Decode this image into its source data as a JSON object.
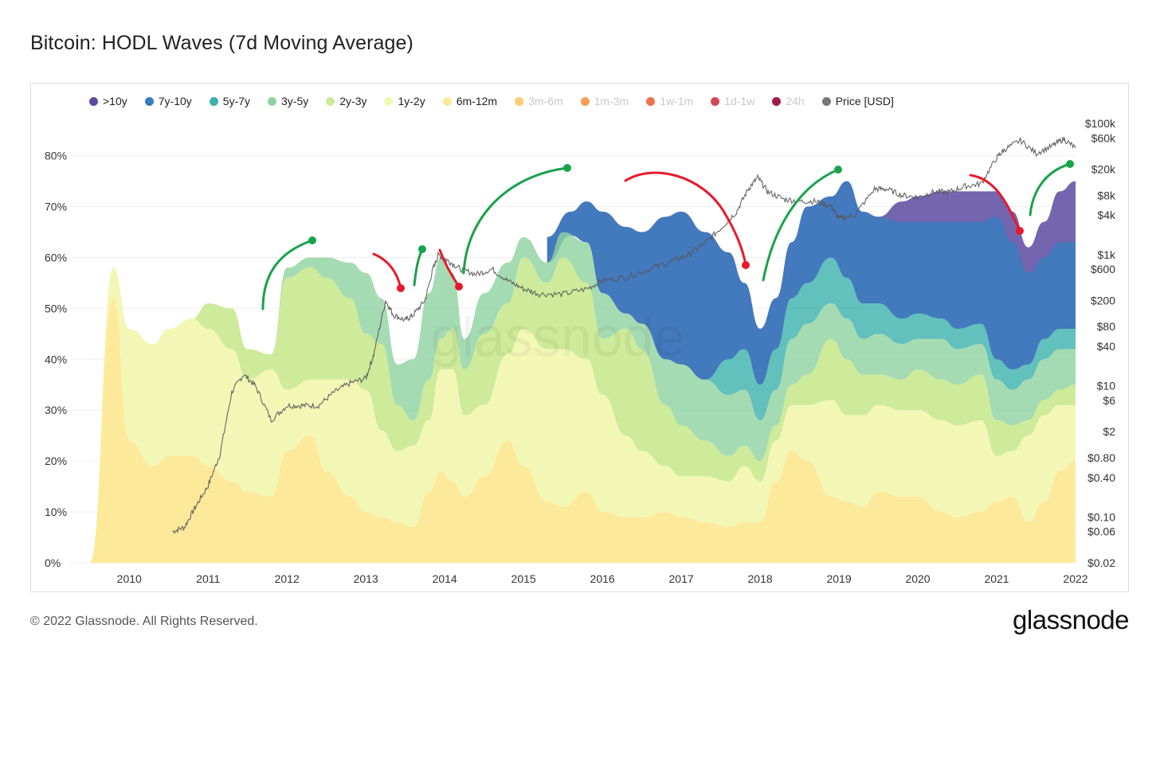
{
  "title": "Bitcoin: HODL Waves (7d Moving Average)",
  "footer": "© 2022 Glassnode. All Rights Reserved.",
  "logo_text": "glassnode",
  "watermark": "glassnode",
  "legend": [
    {
      "label": ">10y",
      "color": "#5b4aa0",
      "active": true
    },
    {
      "label": "7y-10y",
      "color": "#3b7cc0",
      "active": true
    },
    {
      "label": "5y-7y",
      "color": "#3bb0ad",
      "active": true
    },
    {
      "label": "3y-5y",
      "color": "#8fd2a0",
      "active": true
    },
    {
      "label": "2y-3y",
      "color": "#cdeb9a",
      "active": true
    },
    {
      "label": "1y-2y",
      "color": "#f3f7b6",
      "active": true
    },
    {
      "label": "6m-12m",
      "color": "#fde99a",
      "active": true
    },
    {
      "label": "3m-6m",
      "color": "#fdc96e",
      "active": false
    },
    {
      "label": "1m-3m",
      "color": "#f79a4e",
      "active": false
    },
    {
      "label": "1w-1m",
      "color": "#ee6a44",
      "active": false
    },
    {
      "label": "1d-1w",
      "color": "#d63b4e",
      "active": false
    },
    {
      "label": "24h",
      "color": "#9b0d3c",
      "active": false
    },
    {
      "label": "Price [USD]",
      "color": "#777777",
      "active": true
    }
  ],
  "chart_data": {
    "type": "area",
    "stacked": true,
    "x": [
      2009.5,
      2009.8,
      2010.0,
      2010.3,
      2010.5,
      2010.8,
      2011.0,
      2011.3,
      2011.5,
      2011.8,
      2012.0,
      2012.3,
      2012.5,
      2012.8,
      2013.0,
      2013.2,
      2013.4,
      2013.6,
      2013.8,
      2013.95,
      2014.1,
      2014.25,
      2014.5,
      2014.8,
      2015.0,
      2015.3,
      2015.5,
      2015.8,
      2016.0,
      2016.3,
      2016.5,
      2016.8,
      2017.0,
      2017.3,
      2017.6,
      2017.8,
      2018.0,
      2018.2,
      2018.4,
      2018.6,
      2018.9,
      2019.1,
      2019.3,
      2019.5,
      2019.8,
      2020.0,
      2020.3,
      2020.5,
      2020.8,
      2021.0,
      2021.2,
      2021.4,
      2021.6,
      2021.8,
      2022.0
    ],
    "series": [
      {
        "name": "6m-12m",
        "values": [
          0,
          52,
          24,
          19,
          21,
          21,
          19,
          16,
          14,
          13,
          22,
          25,
          18,
          13,
          10,
          9,
          8,
          7,
          14,
          18,
          16,
          13,
          17,
          24,
          19,
          12,
          11,
          14,
          10,
          9,
          9,
          10,
          9,
          8,
          7,
          8,
          8,
          16,
          22,
          20,
          13,
          12,
          11,
          14,
          13,
          13,
          10,
          9,
          10,
          12,
          13,
          8,
          12,
          18,
          20
        ]
      },
      {
        "name": "1y-2y",
        "values": [
          0,
          6,
          22,
          24,
          25,
          27,
          27,
          26,
          22,
          25,
          12,
          11,
          18,
          23,
          24,
          17,
          14,
          16,
          14,
          20,
          22,
          16,
          14,
          17,
          27,
          30,
          31,
          26,
          23,
          16,
          13,
          9,
          8,
          9,
          9,
          11,
          8,
          8,
          9,
          11,
          19,
          17,
          18,
          17,
          17,
          17,
          18,
          18,
          18,
          9,
          9,
          17,
          17,
          13,
          11
        ]
      },
      {
        "name": "2y-3y",
        "values": [
          0,
          0,
          0,
          0,
          0,
          0,
          5,
          8,
          6,
          3,
          22,
          22,
          20,
          16,
          11,
          17,
          9,
          5,
          8,
          6,
          8,
          9,
          14,
          10,
          14,
          13,
          18,
          15,
          11,
          21,
          20,
          12,
          10,
          7,
          5,
          4,
          4,
          3,
          4,
          6,
          12,
          11,
          8,
          6,
          6,
          8,
          8,
          8,
          9,
          7,
          5,
          3,
          3,
          3,
          4
        ]
      },
      {
        "name": "3y-5y",
        "values": [
          0,
          0,
          0,
          0,
          0,
          0,
          0,
          0,
          0,
          0,
          2,
          2,
          4,
          7,
          12,
          9,
          8,
          12,
          17,
          16,
          11,
          6,
          8,
          8,
          4,
          4,
          5,
          8,
          9,
          3,
          5,
          9,
          12,
          12,
          12,
          11,
          8,
          7,
          9,
          10,
          7,
          8,
          7,
          8,
          7,
          6,
          8,
          7,
          6,
          8,
          7,
          8,
          8,
          8,
          7
        ]
      },
      {
        "name": "5y-7y",
        "values": [
          0,
          0,
          0,
          0,
          0,
          0,
          0,
          0,
          0,
          0,
          0,
          0,
          0,
          0,
          0,
          0,
          0,
          0,
          0,
          0,
          0,
          0,
          0,
          0,
          0,
          0,
          0,
          0,
          0,
          0,
          0,
          0,
          0,
          0,
          7,
          8,
          7,
          8,
          8,
          8,
          9,
          8,
          7,
          6,
          5,
          5,
          4,
          4,
          4,
          4,
          4,
          3,
          4,
          4,
          4
        ]
      },
      {
        "name": "7y-10y",
        "values": [
          0,
          0,
          0,
          0,
          0,
          0,
          0,
          0,
          0,
          0,
          0,
          0,
          0,
          0,
          0,
          0,
          0,
          0,
          0,
          0,
          0,
          0,
          0,
          0,
          0,
          0,
          0,
          0,
          0,
          0,
          0,
          0,
          0,
          0,
          0,
          0,
          0,
          0,
          0,
          0,
          0,
          0,
          0,
          0,
          0,
          0,
          0,
          0,
          0,
          0,
          0,
          0,
          0,
          0,
          0
        ]
      },
      {
        "name": ">10y",
        "values": [
          0,
          0,
          0,
          0,
          0,
          0,
          0,
          0,
          0,
          0,
          0,
          0,
          0,
          0,
          0,
          0,
          0,
          0,
          0,
          0,
          0,
          0,
          0,
          0,
          0,
          0,
          0,
          0,
          0,
          0,
          0,
          0,
          0,
          0,
          0,
          0,
          0,
          0,
          0,
          0,
          0,
          0,
          0,
          0,
          0,
          0,
          0,
          0,
          0,
          0,
          0,
          0,
          0,
          0,
          0
        ]
      }
    ],
    "top_bands": {
      "x": [
        2015.3,
        2015.6,
        2015.8,
        2016.0,
        2016.3,
        2016.5,
        2016.8,
        2017.0,
        2017.3,
        2017.6,
        2017.8,
        2018.0,
        2018.2,
        2018.4,
        2018.6,
        2018.9,
        2019.1,
        2019.3,
        2019.5,
        2019.8,
        2020.0,
        2020.3,
        2020.5,
        2020.8,
        2021.0,
        2021.2,
        2021.4,
        2021.6,
        2021.8,
        2022.0
      ],
      "levels_7y_10y_top": [
        64,
        69,
        71,
        69,
        66,
        65,
        68,
        69,
        65,
        61,
        55,
        46,
        52,
        63,
        70,
        72,
        75,
        69,
        68,
        67,
        67,
        67,
        67,
        67,
        68,
        63,
        57,
        60,
        63,
        63
      ],
      "levels_10y_top": [
        64,
        69,
        71,
        69,
        66,
        65,
        68,
        69,
        65,
        61,
        55,
        46,
        52,
        63,
        70,
        72,
        75,
        69,
        68,
        71,
        72,
        73,
        73,
        73,
        73,
        69,
        62,
        67,
        73,
        75
      ]
    },
    "price": {
      "name": "Price [USD]",
      "x": [
        2010.55,
        2010.7,
        2010.85,
        2011.0,
        2011.15,
        2011.3,
        2011.45,
        2011.6,
        2011.8,
        2012.0,
        2012.2,
        2012.4,
        2012.6,
        2012.8,
        2013.0,
        2013.1,
        2013.25,
        2013.35,
        2013.5,
        2013.6,
        2013.75,
        2013.85,
        2013.92,
        2014.05,
        2014.2,
        2014.4,
        2014.6,
        2014.8,
        2015.0,
        2015.2,
        2015.5,
        2015.8,
        2016.0,
        2016.3,
        2016.6,
        2016.9,
        2017.1,
        2017.3,
        2017.5,
        2017.7,
        2017.85,
        2017.97,
        2018.1,
        2018.3,
        2018.5,
        2018.7,
        2018.9,
        2019.0,
        2019.2,
        2019.45,
        2019.6,
        2019.8,
        2020.0,
        2020.2,
        2020.4,
        2020.6,
        2020.8,
        2021.0,
        2021.1,
        2021.3,
        2021.5,
        2021.7,
        2021.85,
        2022.0
      ],
      "values": [
        0.06,
        0.07,
        0.15,
        0.3,
        0.9,
        8,
        15,
        10,
        3,
        5,
        5,
        5,
        8,
        11,
        13,
        30,
        200,
        120,
        100,
        120,
        200,
        600,
        1000,
        800,
        600,
        500,
        600,
        400,
        300,
        250,
        250,
        300,
        400,
        450,
        600,
        800,
        1000,
        1500,
        2500,
        4500,
        10000,
        15000,
        9000,
        7000,
        6500,
        6500,
        5500,
        3500,
        4000,
        10000,
        10000,
        8000,
        7500,
        9000,
        9000,
        11000,
        12000,
        30000,
        40000,
        55000,
        35000,
        45000,
        58000,
        42000
      ],
      "scale": "log"
    },
    "y_left_ticks": [
      "0%",
      "10%",
      "20%",
      "30%",
      "40%",
      "50%",
      "60%",
      "70%",
      "80%"
    ],
    "y_left_range": [
      0,
      80
    ],
    "y_right_ticks": [
      "$0.02",
      "$0.06",
      "$0.10",
      "$0.40",
      "$0.80",
      "$2",
      "$6",
      "$10",
      "$40",
      "$80",
      "$200",
      "$600",
      "$1k",
      "$4k",
      "$8k",
      "$20k",
      "$60k",
      "$100k"
    ],
    "x_ticks": [
      "2010",
      "2011",
      "2012",
      "2013",
      "2014",
      "2015",
      "2016",
      "2017",
      "2018",
      "2019",
      "2020",
      "2021",
      "2022"
    ],
    "grid": true,
    "legend_position": "top"
  }
}
